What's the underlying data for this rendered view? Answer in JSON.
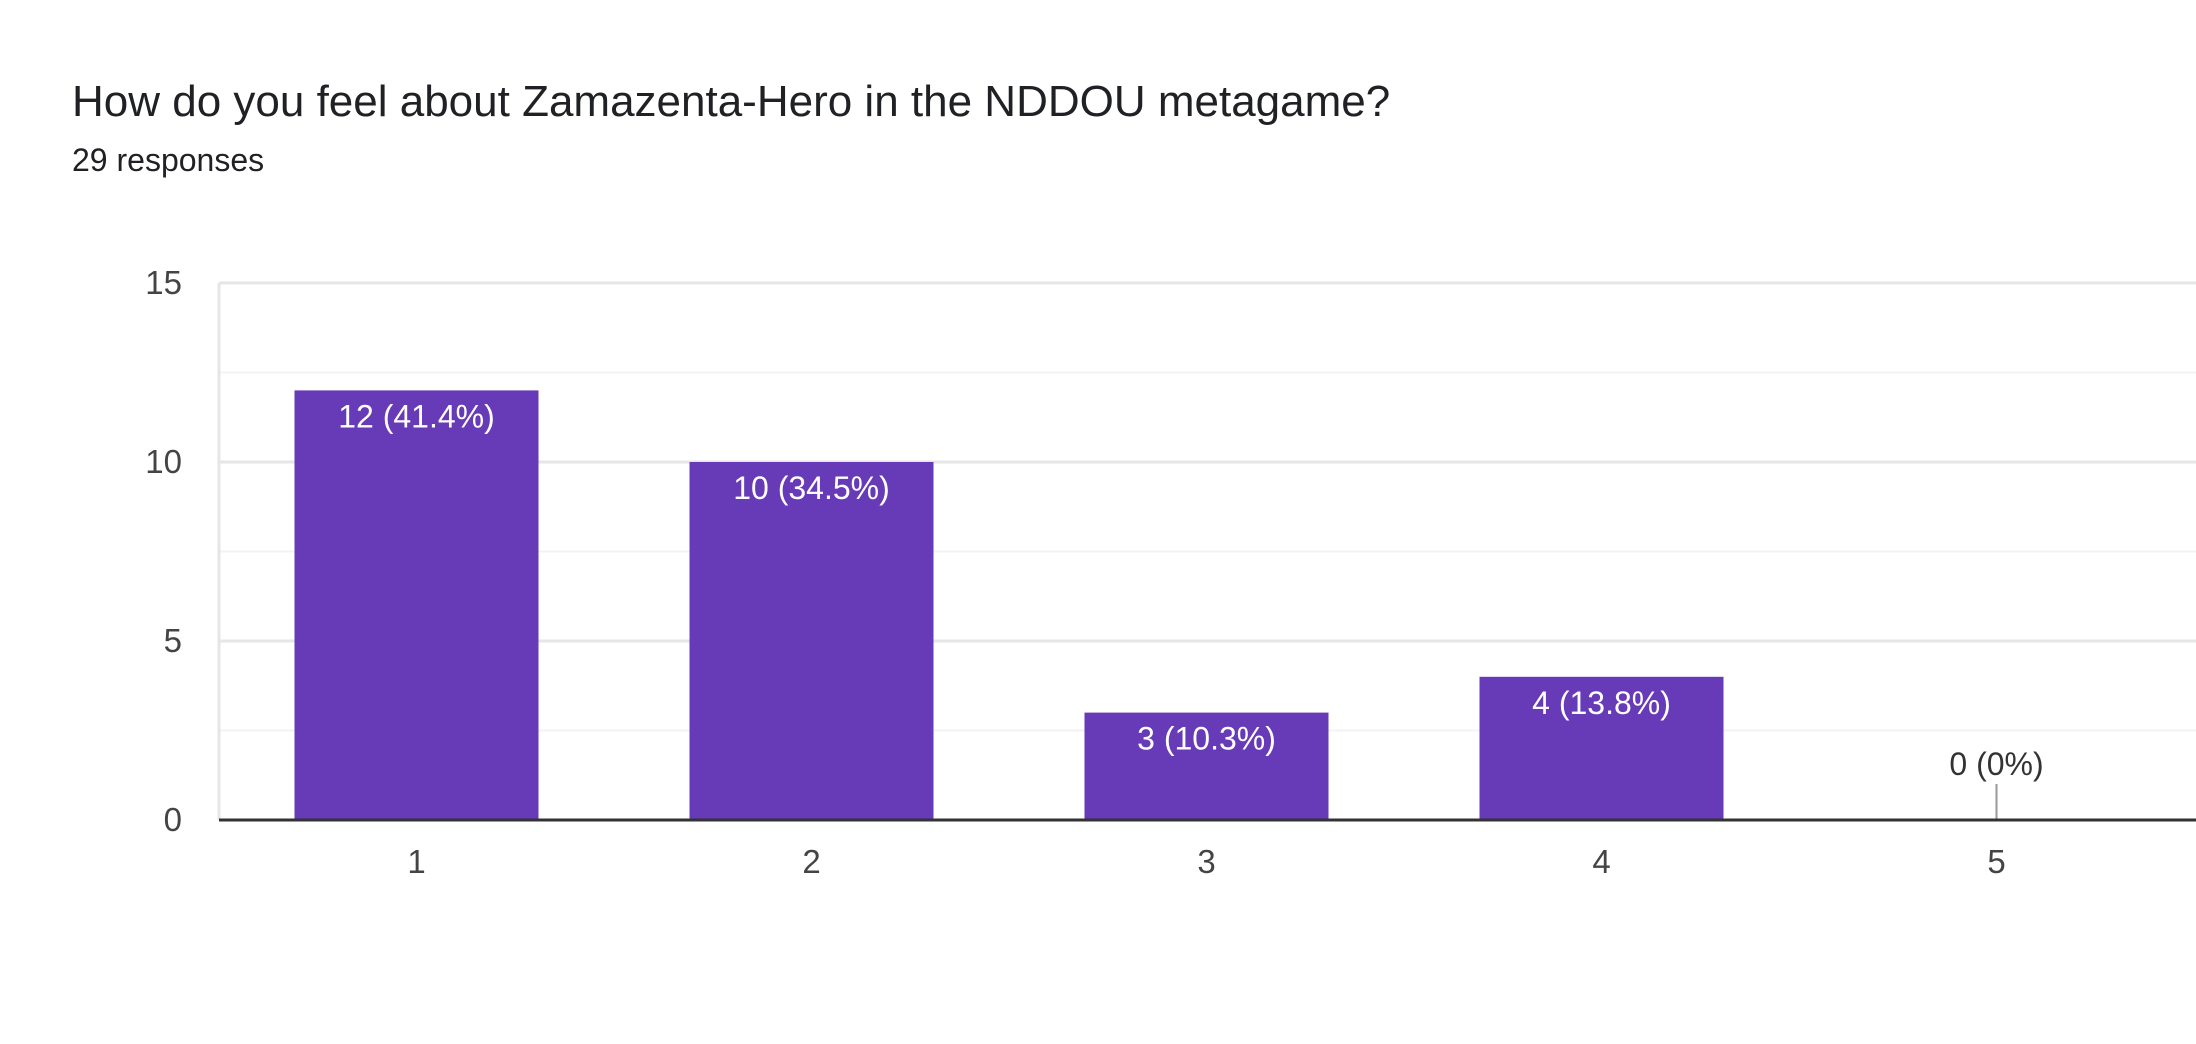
{
  "question": {
    "title": "How do you feel about Zamazenta-Hero in the NDDOU metagame?",
    "response_count": "29 responses"
  },
  "colors": {
    "bar": "#673ab7",
    "grid_major": "#e6e6e6",
    "grid_minor": "#f3f3f3",
    "axis": "#333333",
    "label_inside": "#ffffff",
    "label_outside": "#333333"
  },
  "chart_data": {
    "type": "bar",
    "categories": [
      "1",
      "2",
      "3",
      "4",
      "5"
    ],
    "values": [
      12,
      10,
      3,
      4,
      0
    ],
    "data_labels": [
      "12 (41.4%)",
      "10 (34.5%)",
      "3 (10.3%)",
      "4 (13.8%)",
      "0 (0%)"
    ],
    "ylim": [
      0,
      15
    ],
    "yticks": [
      "0",
      "5",
      "10",
      "15"
    ],
    "grid": true,
    "legend": "none"
  }
}
